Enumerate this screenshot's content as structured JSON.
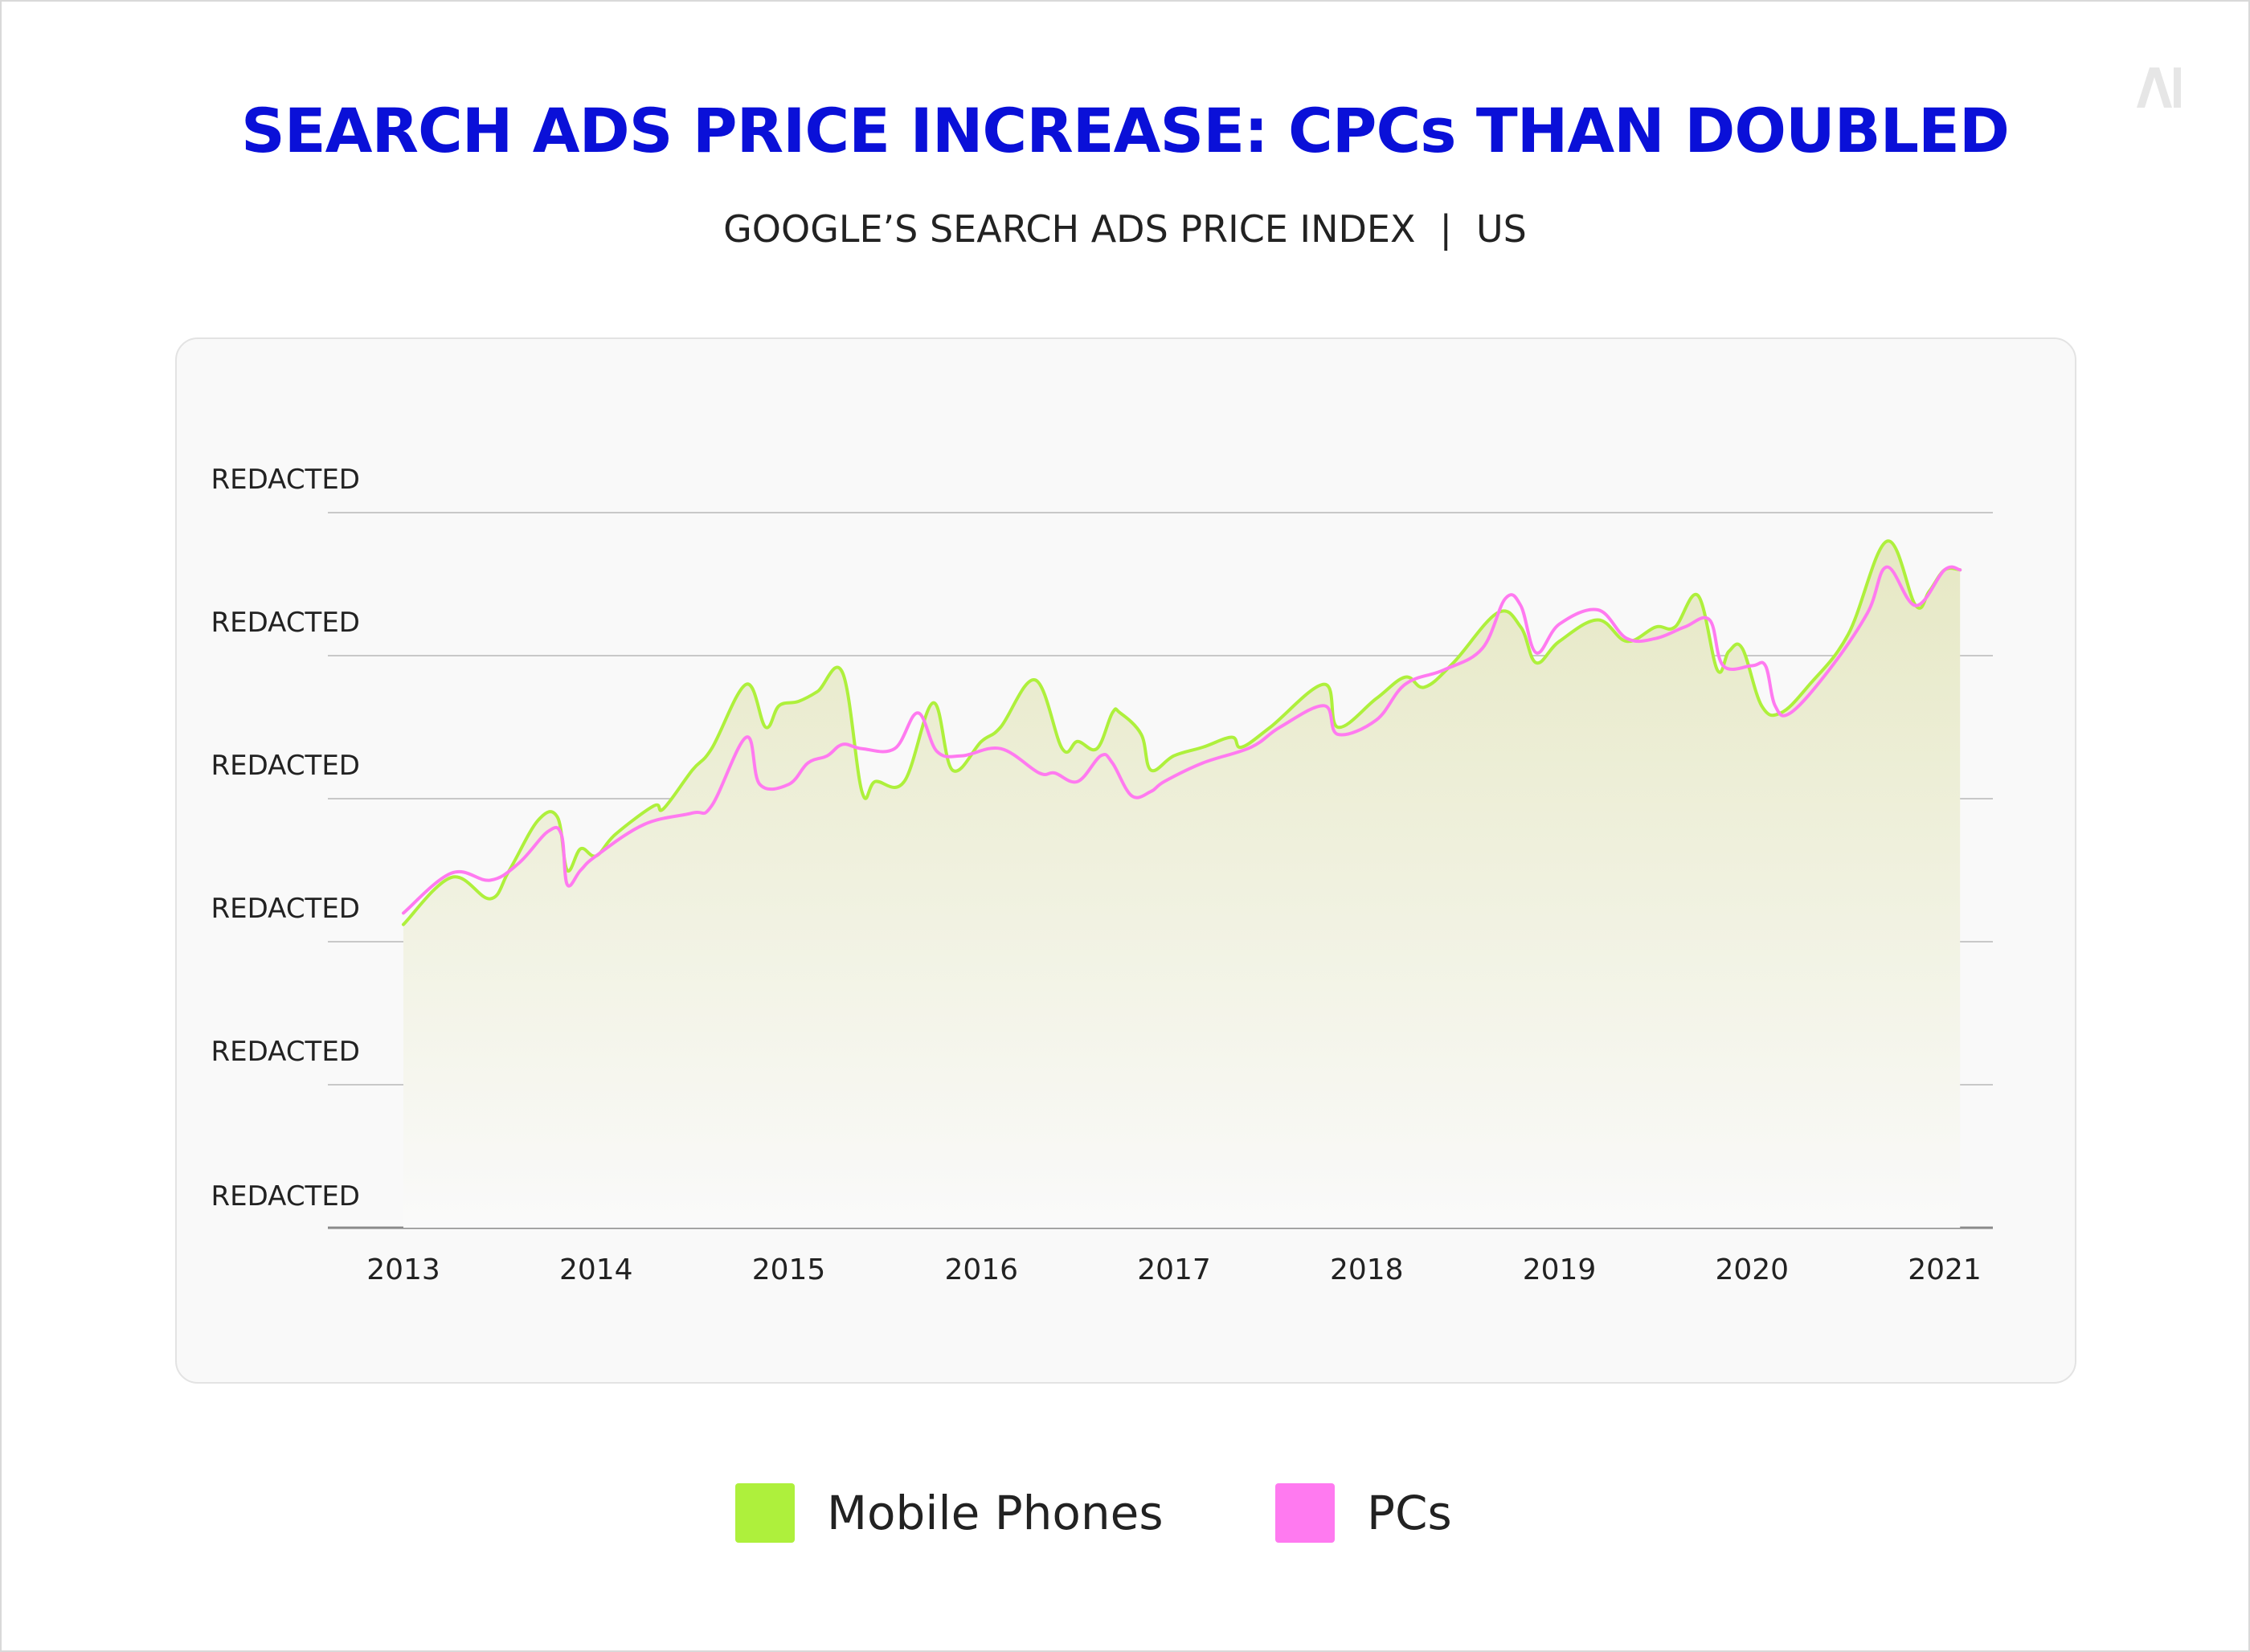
{
  "header": {
    "title": "SEARCH ADS PRICE INCREASE: CPCs THAN DOUBLED",
    "subtitle_left": "GOOGLE’S SEARCH ADS PRICE INDEX",
    "subtitle_sep": "|",
    "subtitle_right": "US",
    "logo_text": "AI"
  },
  "legend": {
    "mobile": "Mobile Phones",
    "pc": "PCs"
  },
  "colors": {
    "title": "#0a10d8",
    "mobile": "#aef03c",
    "pc": "#ff7af0",
    "grid": "#c8c8c8",
    "axis": "#8a8a8a",
    "fill_top": "#e6e8c4",
    "fill_bottom": "#fafafa"
  },
  "chart_data": {
    "type": "line",
    "title": "SEARCH ADS PRICE INCREASE: CPCs THAN DOUBLED",
    "subtitle": "GOOGLE’S SEARCH ADS PRICE INDEX | US",
    "xlabel": "",
    "ylabel": "",
    "xlim": [
      2013.0,
      2021.08
    ],
    "ylim": [
      0,
      5
    ],
    "x_ticks": [
      2013,
      2014,
      2015,
      2016,
      2017,
      2018,
      2019,
      2020,
      2021
    ],
    "y_tick_values": [
      0,
      1,
      2,
      3,
      4,
      5
    ],
    "y_tick_labels": [
      "REDACTED",
      "REDACTED",
      "REDACTED",
      "REDACTED",
      "REDACTED",
      "REDACTED"
    ],
    "grid": true,
    "legend_position": "bottom-center",
    "series": [
      {
        "name": "Mobile Phones",
        "color": "#aef03c",
        "filled": true,
        "x": [
          2013.0,
          2013.25,
          2013.45,
          2013.55,
          2013.7,
          2013.8,
          2013.85,
          2013.92,
          2014.0,
          2014.1,
          2014.3,
          2014.35,
          2014.5,
          2014.6,
          2014.78,
          2014.88,
          2014.95,
          2015.05,
          2015.15,
          2015.28,
          2015.38,
          2015.45,
          2015.6,
          2015.75,
          2015.85,
          2016.0,
          2016.1,
          2016.28,
          2016.42,
          2016.5,
          2016.6,
          2016.68,
          2016.72,
          2016.83,
          2016.88,
          2017.0,
          2017.15,
          2017.3,
          2017.35,
          2017.5,
          2017.78,
          2017.85,
          2018.05,
          2018.2,
          2018.3,
          2018.45,
          2018.68,
          2018.8,
          2018.88,
          2019.0,
          2019.2,
          2019.35,
          2019.5,
          2019.6,
          2019.72,
          2019.82,
          2019.88,
          2019.95,
          2020.05,
          2020.15,
          2020.3,
          2020.5,
          2020.7,
          2020.85,
          2020.92,
          2021.0,
          2021.08
        ],
        "y": [
          2.12,
          2.45,
          2.3,
          2.5,
          2.85,
          2.87,
          2.5,
          2.65,
          2.6,
          2.75,
          2.95,
          2.93,
          3.2,
          3.35,
          3.8,
          3.5,
          3.65,
          3.68,
          3.75,
          3.88,
          3.05,
          3.12,
          3.12,
          3.67,
          3.2,
          3.4,
          3.5,
          3.83,
          3.35,
          3.4,
          3.35,
          3.6,
          3.6,
          3.45,
          3.2,
          3.3,
          3.36,
          3.43,
          3.36,
          3.5,
          3.8,
          3.5,
          3.7,
          3.85,
          3.78,
          3.95,
          4.3,
          4.2,
          3.95,
          4.1,
          4.25,
          4.1,
          4.2,
          4.2,
          4.42,
          3.9,
          4.03,
          4.05,
          3.65,
          3.6,
          3.8,
          4.15,
          4.8,
          4.35,
          4.45,
          4.6,
          4.6
        ]
      },
      {
        "name": "PCs",
        "color": "#ff7af0",
        "filled": false,
        "x": [
          2013.0,
          2013.25,
          2013.45,
          2013.6,
          2013.75,
          2013.82,
          2013.85,
          2013.92,
          2014.0,
          2014.25,
          2014.5,
          2014.6,
          2014.78,
          2014.85,
          2015.0,
          2015.1,
          2015.2,
          2015.28,
          2015.38,
          2015.55,
          2015.67,
          2015.77,
          2015.9,
          2016.1,
          2016.3,
          2016.38,
          2016.5,
          2016.62,
          2016.68,
          2016.78,
          2016.88,
          2016.95,
          2017.15,
          2017.4,
          2017.55,
          2017.78,
          2017.85,
          2018.05,
          2018.2,
          2018.4,
          2018.6,
          2018.72,
          2018.8,
          2018.88,
          2019.0,
          2019.2,
          2019.35,
          2019.5,
          2019.65,
          2019.78,
          2019.85,
          2020.0,
          2020.07,
          2020.12,
          2020.2,
          2020.4,
          2020.6,
          2020.7,
          2020.85,
          2021.0,
          2021.08
        ],
        "y": [
          2.2,
          2.48,
          2.43,
          2.55,
          2.77,
          2.75,
          2.4,
          2.5,
          2.6,
          2.82,
          2.9,
          2.95,
          3.43,
          3.1,
          3.1,
          3.25,
          3.3,
          3.38,
          3.35,
          3.35,
          3.6,
          3.33,
          3.3,
          3.35,
          3.18,
          3.18,
          3.12,
          3.3,
          3.25,
          3.02,
          3.05,
          3.12,
          3.25,
          3.36,
          3.5,
          3.65,
          3.45,
          3.55,
          3.8,
          3.9,
          4.05,
          4.4,
          4.35,
          4.02,
          4.22,
          4.32,
          4.12,
          4.12,
          4.2,
          4.25,
          3.93,
          3.93,
          3.93,
          3.65,
          3.6,
          3.9,
          4.3,
          4.62,
          4.35,
          4.6,
          4.6
        ]
      }
    ]
  }
}
